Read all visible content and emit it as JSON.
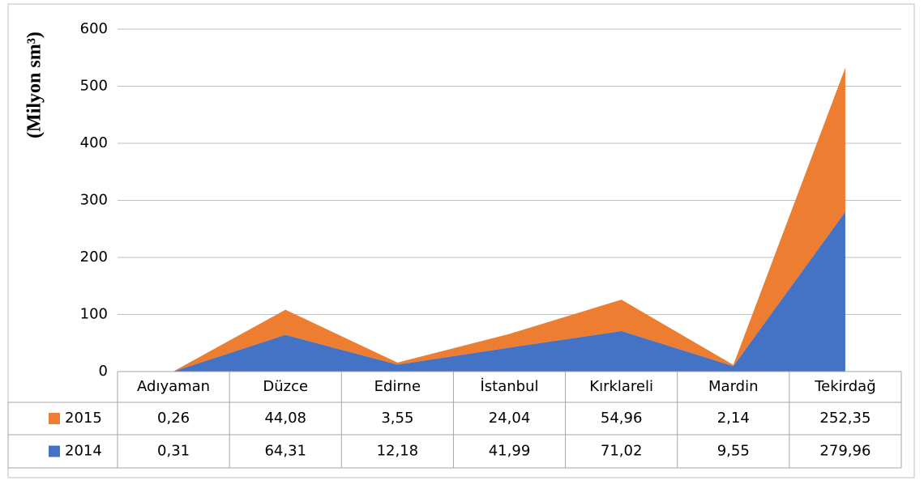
{
  "chart_data": {
    "type": "stacked-area",
    "y_label": "(Milyon sm³)",
    "categories": [
      "Adıyaman",
      "Düzce",
      "Edirne",
      "İstanbul",
      "Kırklareli",
      "Mardin",
      "Tekirdağ"
    ],
    "series": [
      {
        "name": "2015",
        "color": "#ed7d31",
        "values": [
          0.26,
          44.08,
          3.55,
          24.04,
          54.96,
          2.14,
          252.35
        ],
        "value_labels": [
          "0,26",
          "44,08",
          "3,55",
          "24,04",
          "54,96",
          "2,14",
          "252,35"
        ]
      },
      {
        "name": "2014",
        "color": "#4472c4",
        "values": [
          0.31,
          64.31,
          12.18,
          41.99,
          71.02,
          9.55,
          279.96
        ],
        "value_labels": [
          "0,31",
          "64,31",
          "12,18",
          "41,99",
          "71,02",
          "9,55",
          "279,96"
        ]
      }
    ],
    "ylim": [
      0,
      600
    ],
    "yticks": [
      0,
      100,
      200,
      300,
      400,
      500,
      600
    ],
    "grid": true
  }
}
